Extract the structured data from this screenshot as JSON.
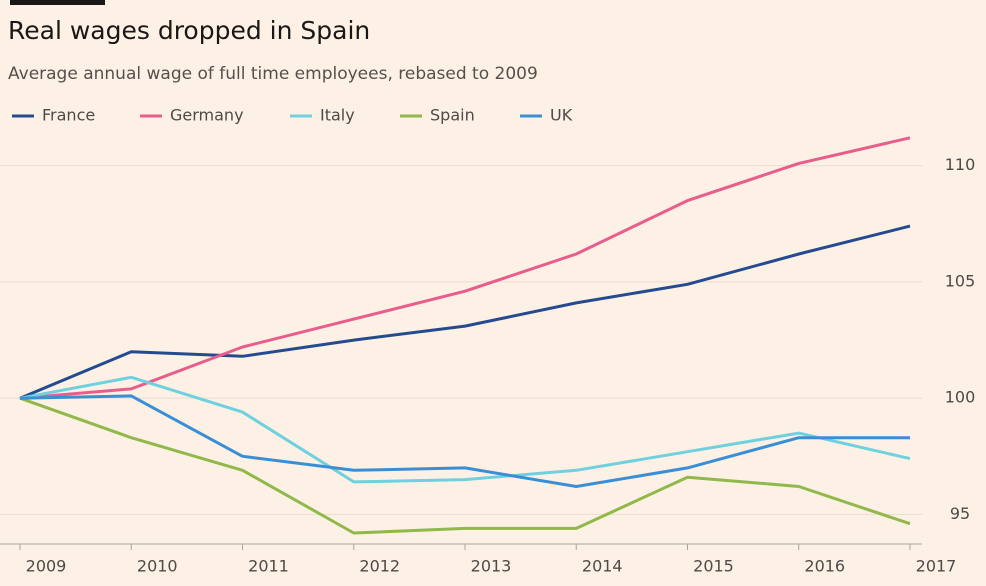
{
  "chart_data": {
    "type": "line",
    "title": "Real wages dropped in Spain",
    "subtitle": "Average annual wage of full time employees, rebased to 2009",
    "x": [
      2009,
      2010,
      2011,
      2012,
      2013,
      2014,
      2015,
      2016,
      2017
    ],
    "xlim": [
      2009,
      2017
    ],
    "xticks": [
      2009,
      2010,
      2011,
      2012,
      2013,
      2014,
      2015,
      2016,
      2017
    ],
    "ylim": [
      93.9,
      111.5
    ],
    "yticks": [
      95,
      100,
      105,
      110
    ],
    "grid": true,
    "legend": "top-left",
    "series": [
      {
        "name": "France",
        "color": "#264a8f",
        "values": [
          100,
          102.0,
          101.8,
          102.5,
          103.1,
          104.1,
          104.9,
          106.2,
          107.4
        ]
      },
      {
        "name": "Germany",
        "color": "#e95d8c",
        "values": [
          100,
          100.4,
          102.2,
          103.4,
          104.6,
          106.2,
          108.5,
          110.1,
          111.2
        ]
      },
      {
        "name": "Italy",
        "color": "#6fd0e0",
        "values": [
          100,
          100.9,
          99.4,
          96.4,
          96.5,
          96.9,
          97.7,
          98.5,
          97.4
        ]
      },
      {
        "name": "Spain",
        "color": "#90b84a",
        "values": [
          100,
          98.3,
          96.9,
          94.2,
          94.4,
          94.4,
          96.6,
          96.2,
          94.6
        ]
      },
      {
        "name": "UK",
        "color": "#3a8ed6",
        "values": [
          100,
          100.1,
          97.5,
          96.9,
          97.0,
          96.2,
          97.0,
          98.3,
          98.3
        ]
      }
    ]
  }
}
